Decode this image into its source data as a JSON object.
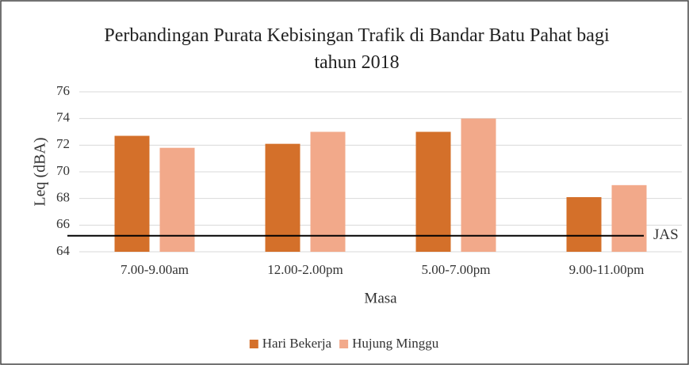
{
  "chart_data": {
    "type": "bar",
    "title": "Perbandingan Purata Kebisingan Trafik di Bandar Batu Pahat bagi tahun 2018",
    "x_label": "Masa",
    "y_label": "Leq (dBA)",
    "categories": [
      "7.00-9.00am",
      "12.00-2.00pm",
      "5.00-7.00pm",
      "9.00-11.00pm"
    ],
    "series": [
      {
        "name": "Hari Bekerja",
        "color": "#d4702a",
        "values": [
          72.7,
          72.1,
          73.0,
          68.1
        ]
      },
      {
        "name": "Hujung Minggu",
        "color": "#f2a98a",
        "values": [
          71.8,
          73.0,
          74.0,
          69.0
        ]
      }
    ],
    "reference_lines": [
      {
        "value": 65.2,
        "label": "JAS",
        "color": "#000000"
      }
    ],
    "ylim": [
      64,
      76
    ],
    "yticks": [
      64,
      66,
      68,
      70,
      72,
      74,
      76
    ],
    "grid": true,
    "legend": "bottom"
  }
}
